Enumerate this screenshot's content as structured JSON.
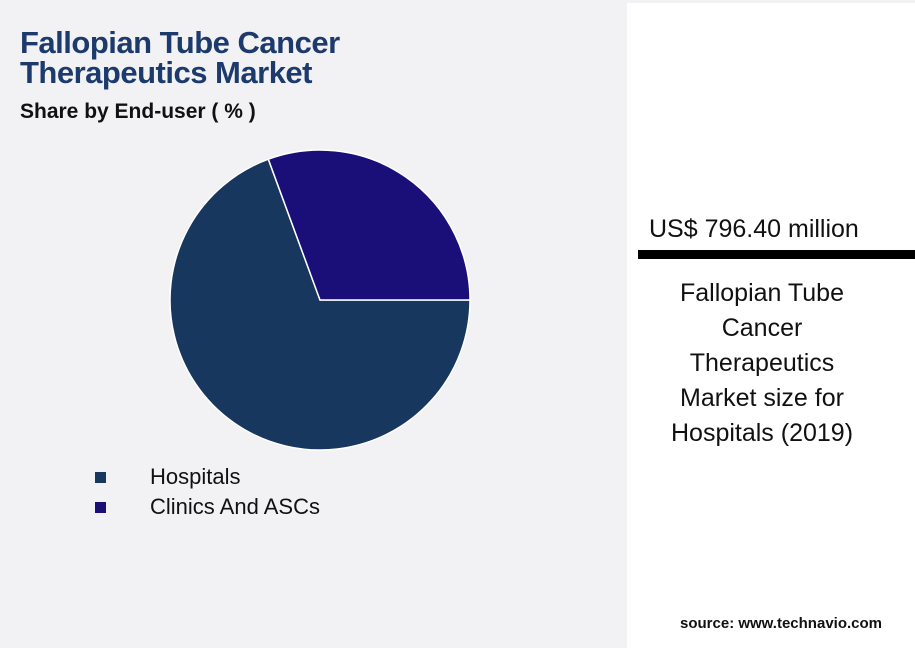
{
  "chart_data": {
    "type": "pie",
    "title": "Fallopian Tube Cancer Therapeutics Market",
    "subtitle": "Share by End-user ( % )",
    "categories": [
      "Hospitals",
      "Clinics And ASCs"
    ],
    "values": [
      69.4,
      30.6
    ],
    "colors": [
      "#17375e",
      "#1a0f78"
    ]
  },
  "callout": {
    "value": "US$ 796.40 million",
    "description": "Fallopian Tube Cancer Therapeutics Market size for Hospitals (2019)"
  },
  "source": "source: www.technavio.com"
}
